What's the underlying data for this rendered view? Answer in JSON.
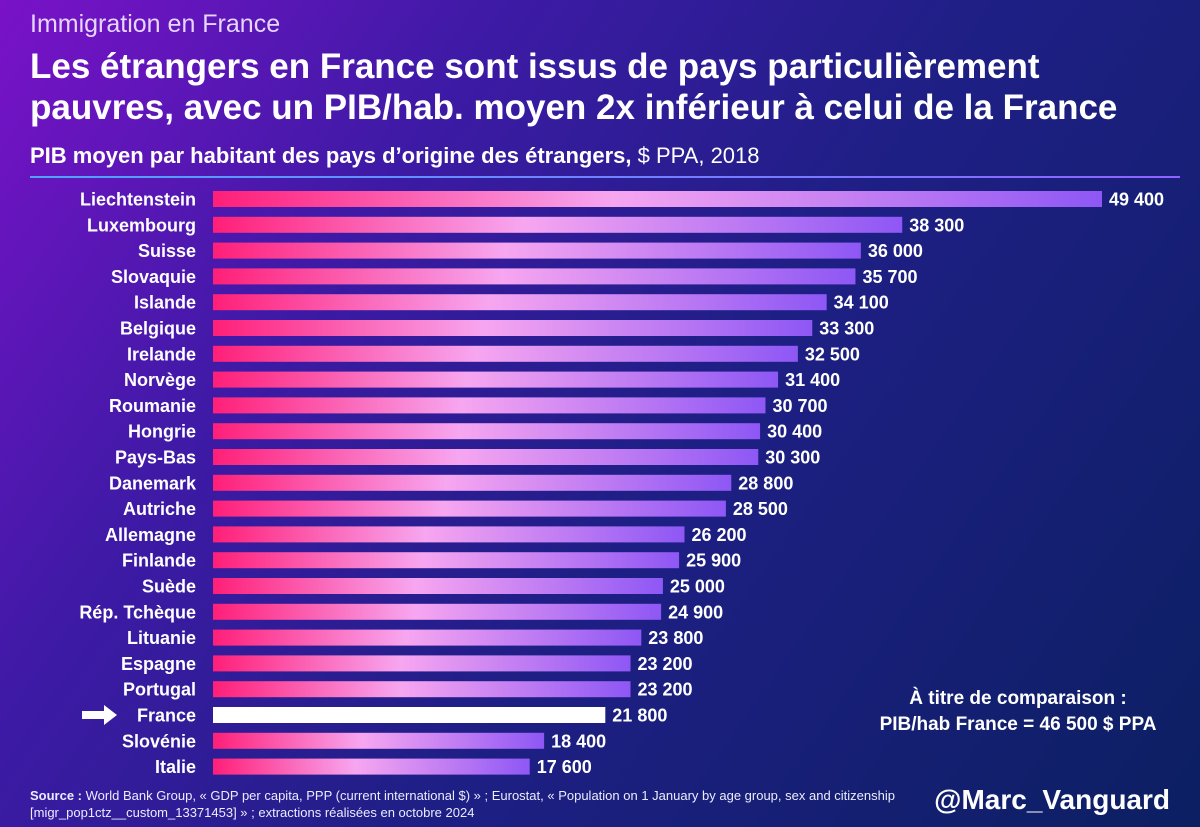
{
  "header": {
    "kicker": "Immigration en France",
    "title": "Les étrangers en France sont issus de pays particulièrement pauvres, avec un PIB/hab. moyen 2x inférieur à celui de la France",
    "subtitle_strong": "PIB moyen par habitant des pays d’origine des étrangers,",
    "subtitle_light": " $ PPA, 2018"
  },
  "colors": {
    "bar_start": "#ff1f78",
    "bar_mid": "#f7a6f0",
    "bar_end": "#8e57f5",
    "highlight_bar": "#ffffff",
    "accent_rule": "#4fa3ff"
  },
  "chart_data": {
    "type": "bar",
    "orientation": "horizontal",
    "title": "PIB moyen par habitant des pays d’origine des étrangers, $ PPA, 2018",
    "xlabel": "",
    "ylabel": "",
    "xlim": [
      0,
      49400
    ],
    "highlight": "France",
    "categories": [
      "Liechtenstein",
      "Luxembourg",
      "Suisse",
      "Slovaquie",
      "Islande",
      "Belgique",
      "Irelande",
      "Norvège",
      "Roumanie",
      "Hongrie",
      "Pays-Bas",
      "Danemark",
      "Autriche",
      "Allemagne",
      "Finlande",
      "Suède",
      "Rép. Tchèque",
      "Lituanie",
      "Espagne",
      "Portugal",
      "France",
      "Slovénie",
      "Italie"
    ],
    "values": [
      49400,
      38300,
      36000,
      35700,
      34100,
      33300,
      32500,
      31400,
      30700,
      30400,
      30300,
      28800,
      28500,
      26200,
      25900,
      25000,
      24900,
      23800,
      23200,
      23200,
      21800,
      18400,
      17600
    ],
    "labels": [
      "49 400",
      "38 300",
      "36 000",
      "35 700",
      "34 100",
      "33 300",
      "32 500",
      "31 400",
      "30 700",
      "30 400",
      "30 300",
      "28 800",
      "28 500",
      "26 200",
      "25 900",
      "25 000",
      "24 900",
      "23 800",
      "23 200",
      "23 200",
      "21 800",
      "18 400",
      "17 600"
    ]
  },
  "comparison": {
    "line1": "À titre de comparaison :",
    "line2": "PIB/hab France = 46 500 $ PPA"
  },
  "footer": {
    "source_label": "Source :",
    "source_text": " World Bank Group, «  GDP per capita, PPP (current international $) » ; Eurostat, « Population on 1 January by age group, sex and citizenship [migr_pop1ctz__custom_13371453] » ; extractions réalisées en octobre 2024",
    "handle": "@Marc_Vanguard"
  }
}
